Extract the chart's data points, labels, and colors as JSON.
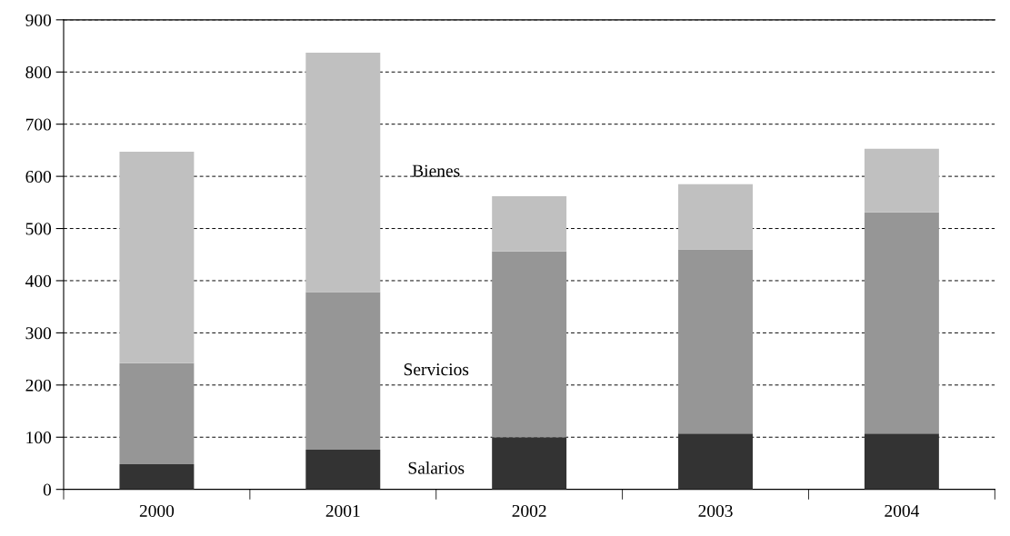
{
  "chart_data": {
    "type": "bar",
    "stacked": true,
    "categories": [
      "2000",
      "2001",
      "2002",
      "2003",
      "2004"
    ],
    "series": [
      {
        "name": "Salarios",
        "color": "#333333",
        "values": [
          48,
          76,
          100,
          107,
          107
        ]
      },
      {
        "name": "Servicios",
        "color": "#969696",
        "values": [
          194,
          302,
          356,
          353,
          424
        ]
      },
      {
        "name": "Bienes",
        "color": "#c0c0c0",
        "values": [
          405,
          459,
          106,
          125,
          122
        ]
      }
    ],
    "ylim": [
      0,
      900
    ],
    "yticks": [
      0,
      100,
      200,
      300,
      400,
      500,
      600,
      700,
      800,
      900
    ],
    "grid": "y",
    "legend": false
  }
}
